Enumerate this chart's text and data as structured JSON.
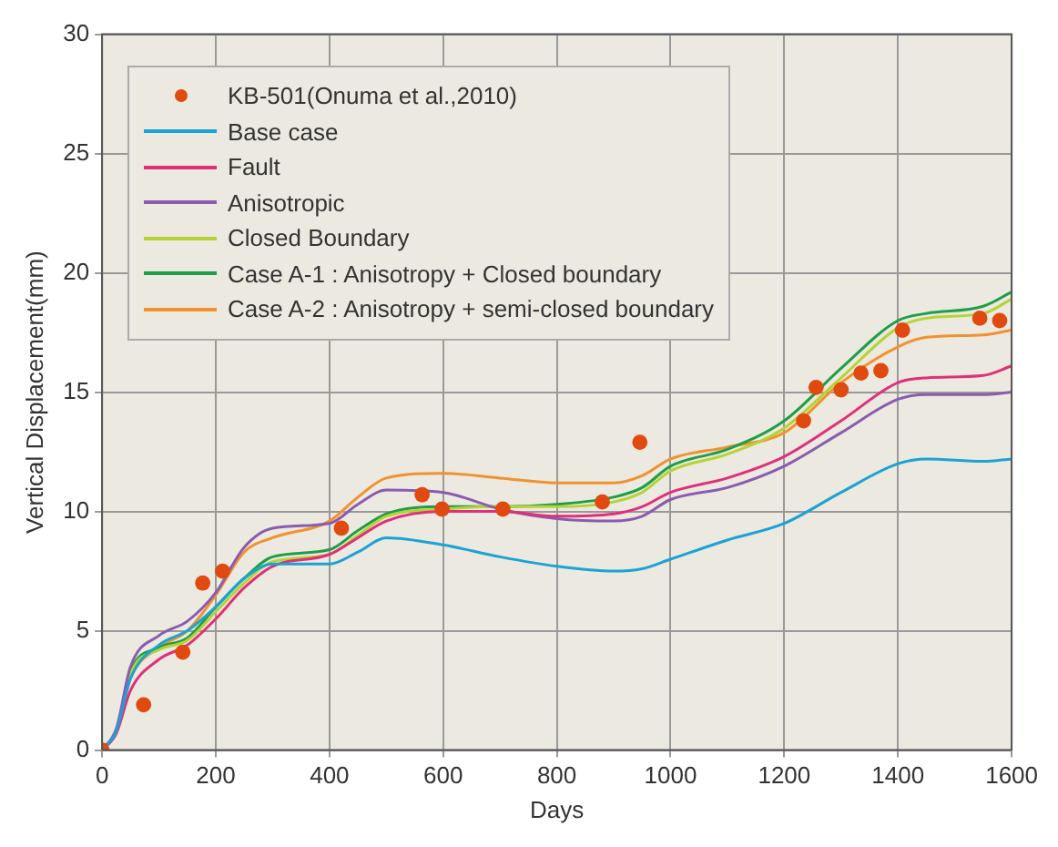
{
  "chart_data": {
    "type": "line",
    "xlabel": "Days",
    "ylabel": "Vertical Displacement(mm)",
    "xlim": [
      0,
      1600
    ],
    "xticks": [
      0,
      200,
      400,
      600,
      800,
      1000,
      1200,
      1400,
      1600
    ],
    "ylim": [
      0,
      30
    ],
    "yticks": [
      0,
      5,
      10,
      15,
      20,
      25,
      30
    ],
    "grid": true,
    "legend": "top left",
    "line_style": "solid",
    "x": [
      0,
      25,
      50,
      100,
      150,
      200,
      250,
      300,
      400,
      450,
      500,
      600,
      700,
      800,
      900,
      950,
      1000,
      1100,
      1200,
      1300,
      1400,
      1450,
      1550,
      1600
    ],
    "series": [
      {
        "name": "KB-501(Onuma et al.,2010)",
        "type": "scatter",
        "marker": "circle",
        "color": "#e04a10",
        "x": [
          0,
          73,
          142,
          177,
          212,
          421,
          563,
          598,
          705,
          880,
          946,
          1234,
          1256,
          1300,
          1335,
          1370,
          1408,
          1544,
          1579
        ],
        "values": [
          0,
          1.9,
          4.1,
          7.0,
          7.5,
          9.3,
          10.7,
          10.1,
          10.1,
          10.4,
          12.9,
          13.8,
          15.2,
          15.1,
          15.8,
          15.9,
          17.6,
          18.1,
          18.0
        ]
      },
      {
        "name": "Base case",
        "color": "#1aa3d4",
        "marker": "none",
        "values": [
          0,
          0.8,
          3.0,
          4.4,
          5.0,
          6.0,
          7.2,
          7.8,
          7.8,
          8.3,
          8.9,
          8.6,
          8.1,
          7.7,
          7.5,
          7.6,
          8.0,
          8.8,
          9.5,
          10.8,
          12.0,
          12.2,
          12.1,
          12.2
        ]
      },
      {
        "name": "Fault",
        "color": "#e0307a",
        "marker": "none",
        "values": [
          0,
          0.7,
          2.5,
          3.8,
          4.4,
          5.5,
          6.8,
          7.7,
          8.2,
          8.9,
          9.6,
          10.0,
          10.0,
          9.8,
          9.9,
          10.2,
          10.8,
          11.4,
          12.3,
          13.8,
          15.4,
          15.6,
          15.7,
          16.1
        ]
      },
      {
        "name": "Anisotropic",
        "color": "#8a5cb0",
        "marker": "none",
        "values": [
          0,
          0.9,
          3.5,
          4.8,
          5.4,
          6.6,
          8.5,
          9.3,
          9.5,
          10.3,
          10.9,
          10.8,
          10.1,
          9.7,
          9.6,
          9.8,
          10.5,
          11.0,
          11.9,
          13.3,
          14.7,
          14.9,
          14.9,
          15.0
        ]
      },
      {
        "name": "Closed Boundary",
        "color": "#b5d334",
        "marker": "none",
        "values": [
          0,
          0.8,
          3.2,
          4.2,
          4.6,
          5.8,
          7.0,
          7.9,
          8.2,
          9.0,
          9.8,
          10.1,
          10.2,
          10.2,
          10.4,
          10.8,
          11.7,
          12.4,
          13.5,
          15.6,
          17.7,
          18.1,
          18.3,
          18.9
        ]
      },
      {
        "name": "Case A-1 : Anisotropy + Closed boundary",
        "color": "#1e9e48",
        "marker": "none",
        "values": [
          0,
          0.8,
          3.3,
          4.3,
          4.7,
          6.0,
          7.2,
          8.1,
          8.4,
          9.2,
          9.9,
          10.2,
          10.2,
          10.3,
          10.6,
          11.0,
          11.9,
          12.6,
          13.8,
          16.0,
          18.0,
          18.3,
          18.6,
          19.2
        ]
      },
      {
        "name": "Case A-2 : Anisotropy + semi-closed boundary",
        "color": "#f0922e",
        "marker": "none",
        "values": [
          0,
          0.8,
          3.0,
          4.3,
          5.0,
          6.5,
          8.3,
          8.9,
          9.6,
          10.6,
          11.4,
          11.6,
          11.4,
          11.2,
          11.2,
          11.5,
          12.2,
          12.7,
          13.3,
          15.4,
          16.9,
          17.3,
          17.4,
          17.6
        ]
      }
    ]
  }
}
